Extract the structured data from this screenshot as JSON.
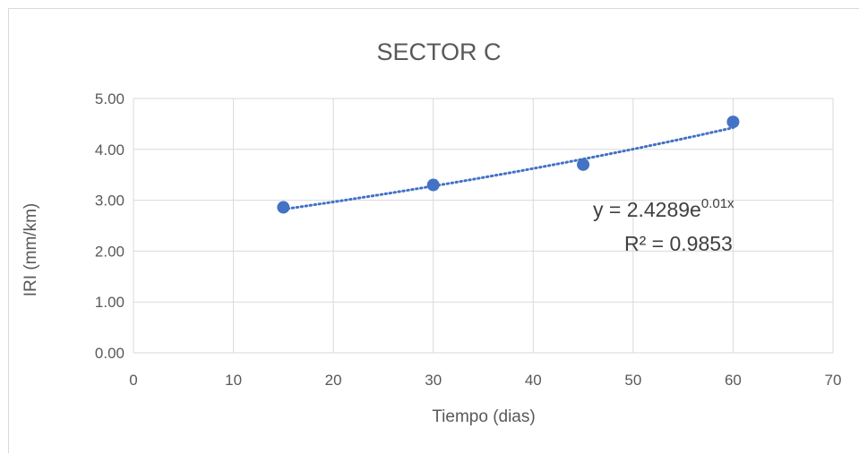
{
  "chart_data": {
    "type": "scatter",
    "title": "SECTOR C",
    "xlabel": "Tiempo (dias)",
    "ylabel": "IRI (mm/km)",
    "xlim": [
      0,
      70
    ],
    "ylim": [
      0,
      5
    ],
    "x_ticks": [
      "0",
      "10",
      "20",
      "30",
      "40",
      "50",
      "60",
      "70"
    ],
    "y_ticks": [
      "0.00",
      "1.00",
      "2.00",
      "3.00",
      "4.00",
      "5.00"
    ],
    "grid": true,
    "legend": false,
    "series": [
      {
        "x": [
          15,
          30,
          45,
          60
        ],
        "y": [
          2.86,
          3.3,
          3.7,
          4.54
        ],
        "color": "#4472c4"
      }
    ],
    "trendline": {
      "type": "exponential",
      "a": 2.4289,
      "b": 0.01,
      "x_range": [
        15,
        60
      ],
      "color": "#4472c4",
      "equation_base": "y = 2.4289e",
      "equation_exp": "0.01x",
      "r_squared": "R² = 0.9853"
    }
  }
}
